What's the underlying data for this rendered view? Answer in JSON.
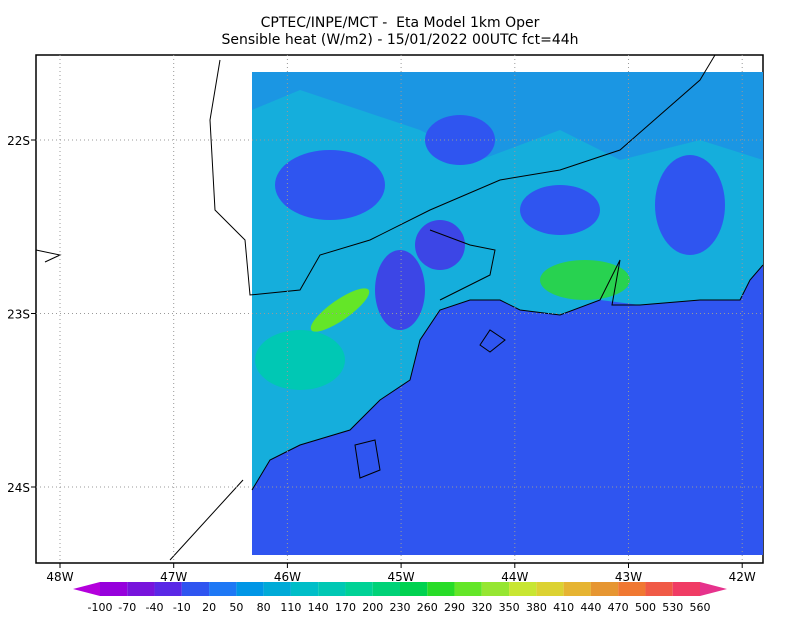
{
  "header": {
    "title_lines": [
      "CPTEC/INPE/MCT -  Eta Model 1km Oper",
      "Sensible heat (W/m2) - 15/01/2022 00UTC fct=44h"
    ]
  },
  "map": {
    "lon_labels": [
      "48W",
      "47W",
      "46W",
      "45W",
      "44W",
      "43W",
      "42W"
    ],
    "lat_labels": [
      "22S",
      "23S",
      "24S"
    ]
  },
  "colorbar": {
    "labels": [
      -100,
      -70,
      -40,
      -10,
      20,
      50,
      80,
      110,
      140,
      170,
      200,
      230,
      260,
      290,
      320,
      350,
      380,
      410,
      440,
      470,
      500,
      530,
      560
    ],
    "colors": [
      "#b400dc",
      "#9600dc",
      "#7814dc",
      "#5a28e6",
      "#2f55f0",
      "#1e78f5",
      "#0096e6",
      "#00aad7",
      "#00bec8",
      "#00c8b4",
      "#00d296",
      "#00d278",
      "#00d250",
      "#28dc28",
      "#64e628",
      "#96e632",
      "#c8e632",
      "#dcd232",
      "#e6b432",
      "#e69632",
      "#f07832",
      "#f05a46",
      "#f03c64",
      "#e6328c"
    ]
  }
}
